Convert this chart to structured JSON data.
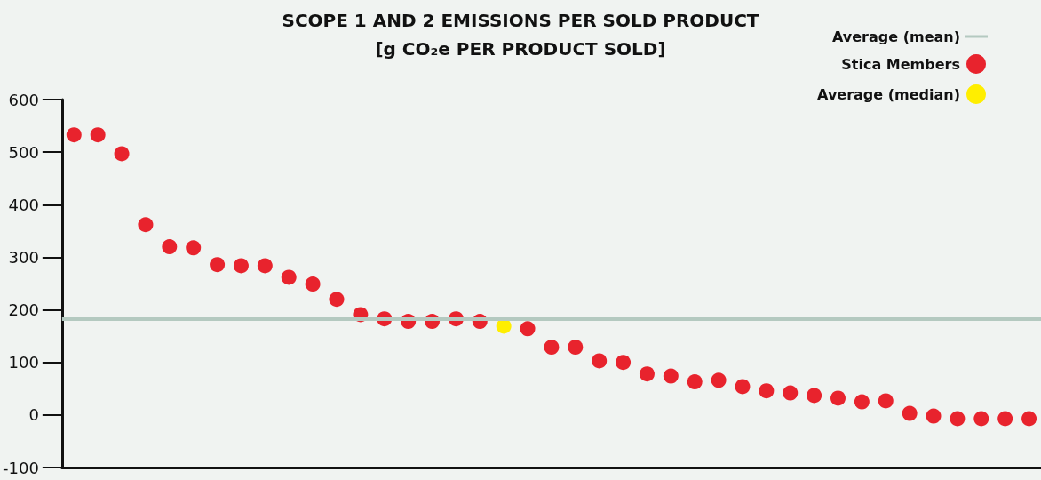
{
  "chart_data": {
    "type": "scatter",
    "title": "SCOPE 1 AND 2 EMISSIONS PER SOLD PRODUCT",
    "subtitle": "[g CO₂e PER PRODUCT SOLD]",
    "categories": [
      null,
      null,
      null,
      null,
      null,
      null,
      null,
      null,
      null,
      null,
      null,
      null,
      null,
      null,
      null,
      null,
      null,
      null,
      null,
      null,
      null,
      null,
      null,
      null,
      null,
      null,
      null,
      null,
      null,
      null,
      null,
      null,
      null,
      null,
      null,
      null,
      null,
      null,
      null,
      null,
      null
    ],
    "series": [
      {
        "name": "Stica Members",
        "color": "#e8232d",
        "values": [
          533,
          533,
          497,
          362,
          320,
          318,
          286,
          284,
          284,
          262,
          249,
          220,
          191,
          183,
          178,
          178,
          183,
          178,
          null,
          164,
          129,
          129,
          103,
          100,
          78,
          74,
          63,
          66,
          54,
          46,
          42,
          37,
          32,
          25,
          27,
          3,
          -2,
          -7,
          -7,
          -7,
          -7
        ]
      },
      {
        "name": "Average (median)",
        "color": "#ffee00",
        "values": [
          null,
          null,
          null,
          null,
          null,
          null,
          null,
          null,
          null,
          null,
          null,
          null,
          null,
          null,
          null,
          null,
          null,
          null,
          169,
          null,
          null,
          null,
          null,
          null,
          null,
          null,
          null,
          null,
          null,
          null,
          null,
          null,
          null,
          null,
          null,
          null,
          null,
          null,
          null,
          null,
          null
        ]
      }
    ],
    "ref_lines": [
      {
        "axis": "y",
        "value": 183,
        "label": "Average (mean)",
        "color": "#b4c9c0"
      }
    ],
    "ylim": [
      -100,
      600
    ],
    "yticks": [
      -100,
      0,
      100,
      200,
      300,
      400,
      500,
      600
    ],
    "tick_labels": "y",
    "grid": false,
    "legend": "top right",
    "marker": "circle"
  }
}
